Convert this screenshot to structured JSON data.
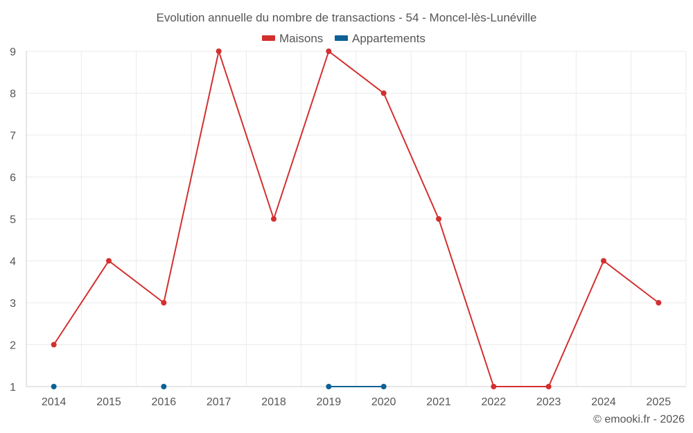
{
  "chart_data": {
    "type": "line",
    "title": "Evolution annuelle du nombre de transactions - 54 - Moncel-lès-Lunéville",
    "xlabel": "",
    "ylabel": "",
    "categories": [
      "2014",
      "2015",
      "2016",
      "2017",
      "2018",
      "2019",
      "2020",
      "2021",
      "2022",
      "2023",
      "2024",
      "2025"
    ],
    "ylim": [
      1,
      9
    ],
    "yticks": [
      "1",
      "2",
      "3",
      "4",
      "5",
      "6",
      "7",
      "8",
      "9"
    ],
    "grid": true,
    "legend_position": "top-center",
    "series": [
      {
        "name": "Maisons",
        "color": "#d32f2f",
        "values": [
          2,
          4,
          3,
          9,
          5,
          9,
          8,
          5,
          1,
          1,
          4,
          3
        ]
      },
      {
        "name": "Appartements",
        "color": "#0d6196",
        "values": [
          1,
          null,
          1,
          null,
          null,
          1,
          1,
          null,
          null,
          null,
          null,
          null
        ]
      }
    ]
  },
  "credit": "© emooki.fr - 2026"
}
